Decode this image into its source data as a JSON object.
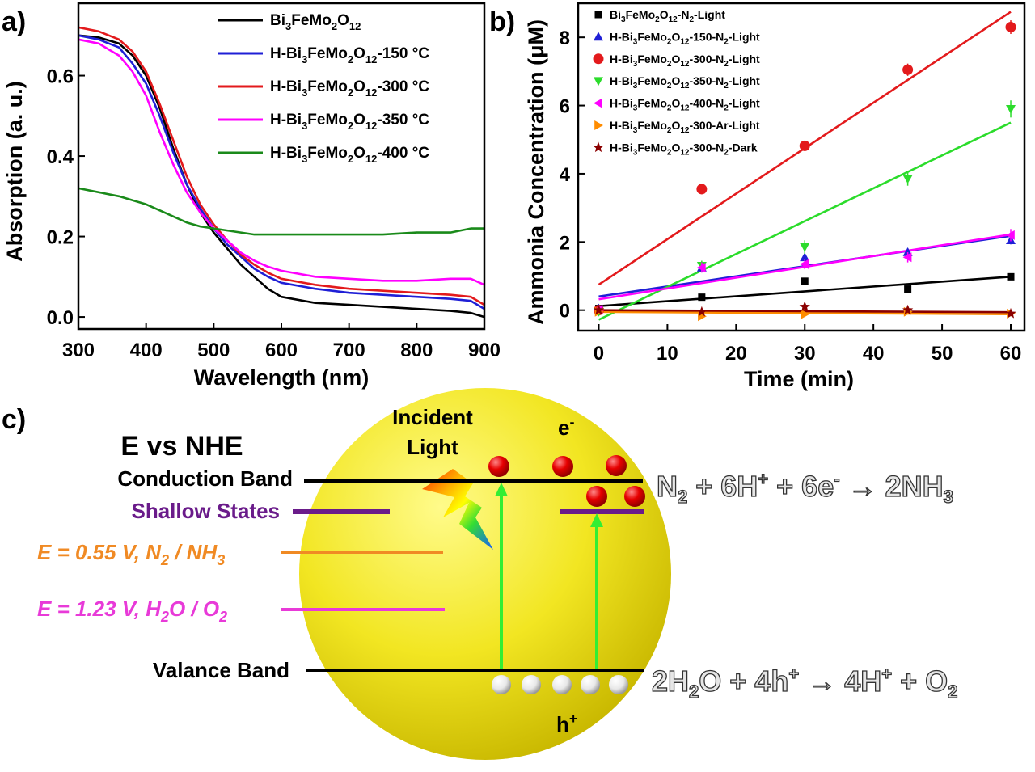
{
  "panels": {
    "a": "a)",
    "b": "b)",
    "c": "c)"
  },
  "chart_data": [
    {
      "type": "line",
      "title": "",
      "xlabel": "Wavelength (nm)",
      "ylabel": "Absorption (a. u.)",
      "xlim": [
        300,
        900
      ],
      "ylim": [
        -0.03,
        0.78
      ],
      "xticks": [
        300,
        400,
        500,
        600,
        700,
        800,
        900
      ],
      "yticks": [
        0.0,
        0.2,
        0.4,
        0.6
      ],
      "legend_position": "top-right",
      "series": [
        {
          "name": "Bi3FeMo2O12",
          "label_parts": [
            "Bi",
            "3",
            "FeMo",
            "2",
            "O",
            "12",
            ""
          ],
          "color": "#000000",
          "x": [
            300,
            330,
            360,
            380,
            400,
            420,
            440,
            460,
            480,
            500,
            520,
            540,
            560,
            580,
            600,
            650,
            700,
            750,
            800,
            850,
            880,
            900
          ],
          "y": [
            0.7,
            0.695,
            0.68,
            0.65,
            0.6,
            0.52,
            0.42,
            0.33,
            0.26,
            0.21,
            0.17,
            0.13,
            0.1,
            0.07,
            0.05,
            0.035,
            0.03,
            0.025,
            0.02,
            0.015,
            0.01,
            0.0
          ]
        },
        {
          "name": "H-Bi3FeMo2O12-150 °C",
          "label_parts": [
            "H-Bi",
            "3",
            "FeMo",
            "2",
            "O",
            "12",
            "-150 °C"
          ],
          "color": "#1f1fd6",
          "x": [
            300,
            330,
            360,
            380,
            400,
            420,
            440,
            460,
            480,
            500,
            520,
            540,
            560,
            580,
            600,
            650,
            700,
            750,
            800,
            850,
            880,
            900
          ],
          "y": [
            0.7,
            0.69,
            0.67,
            0.63,
            0.58,
            0.5,
            0.41,
            0.33,
            0.27,
            0.22,
            0.18,
            0.15,
            0.12,
            0.1,
            0.085,
            0.07,
            0.06,
            0.055,
            0.05,
            0.045,
            0.04,
            0.02
          ]
        },
        {
          "name": "H-Bi3FeMo2O12-300 °C",
          "label_parts": [
            "H-Bi",
            "3",
            "FeMo",
            "2",
            "O",
            "12",
            "-300 °C"
          ],
          "color": "#e31a1c",
          "x": [
            300,
            330,
            360,
            380,
            400,
            420,
            440,
            460,
            480,
            500,
            520,
            540,
            560,
            580,
            600,
            650,
            700,
            750,
            800,
            850,
            880,
            900
          ],
          "y": [
            0.72,
            0.71,
            0.69,
            0.66,
            0.61,
            0.53,
            0.44,
            0.35,
            0.28,
            0.23,
            0.19,
            0.155,
            0.13,
            0.11,
            0.095,
            0.08,
            0.07,
            0.065,
            0.06,
            0.055,
            0.05,
            0.03
          ]
        },
        {
          "name": "H-Bi3FeMo2O12-350 °C",
          "label_parts": [
            "H-Bi",
            "3",
            "FeMo",
            "2",
            "O",
            "12",
            "-350 °C"
          ],
          "color": "#ff00ff",
          "x": [
            300,
            330,
            360,
            380,
            400,
            420,
            440,
            460,
            480,
            500,
            520,
            540,
            560,
            580,
            600,
            650,
            700,
            750,
            800,
            850,
            880,
            900
          ],
          "y": [
            0.69,
            0.68,
            0.65,
            0.61,
            0.55,
            0.46,
            0.38,
            0.31,
            0.26,
            0.22,
            0.19,
            0.16,
            0.14,
            0.125,
            0.115,
            0.1,
            0.095,
            0.09,
            0.09,
            0.095,
            0.095,
            0.08
          ]
        },
        {
          "name": "H-Bi3FeMo2O12-400 °C",
          "label_parts": [
            "H-Bi",
            "3",
            "FeMo",
            "2",
            "O",
            "12",
            "-400 °C"
          ],
          "color": "#1a8a1a",
          "x": [
            300,
            330,
            360,
            380,
            400,
            420,
            440,
            460,
            480,
            500,
            520,
            540,
            560,
            580,
            600,
            650,
            700,
            750,
            800,
            850,
            880,
            900
          ],
          "y": [
            0.32,
            0.31,
            0.3,
            0.29,
            0.28,
            0.265,
            0.25,
            0.235,
            0.225,
            0.22,
            0.215,
            0.21,
            0.205,
            0.205,
            0.205,
            0.205,
            0.205,
            0.205,
            0.21,
            0.21,
            0.22,
            0.22
          ]
        }
      ]
    },
    {
      "type": "scatter",
      "title": "",
      "xlabel": "Time (min)",
      "ylabel": "Ammonia Concentration (μM)",
      "xlim": [
        -3,
        62
      ],
      "ylim": [
        -0.6,
        9.0
      ],
      "xticks": [
        0,
        10,
        20,
        30,
        40,
        50,
        60
      ],
      "yticks": [
        0,
        2,
        4,
        6,
        8
      ],
      "legend_position": "top-left",
      "series": [
        {
          "name": "Bi3FeMo2O12-N2-Light",
          "label_parts": [
            "Bi",
            "3",
            "FeMo",
            "2",
            "O",
            "12",
            "-N",
            "2",
            "-Light"
          ],
          "marker": "square",
          "color": "#000000",
          "x": [
            0,
            15,
            30,
            45,
            60
          ],
          "y": [
            0.05,
            0.38,
            0.85,
            0.62,
            0.98
          ],
          "err": [
            0.03,
            0.04,
            0.05,
            0.05,
            0.05
          ],
          "fit": [
            0.12,
            0.98
          ]
        },
        {
          "name": "H-Bi3FeMo2O12-150-N2-Light",
          "label_parts": [
            "H-Bi",
            "3",
            "FeMo",
            "2",
            "O",
            "12",
            "-150-N",
            "2",
            "-Light"
          ],
          "marker": "triangle-up",
          "color": "#1f1fd6",
          "x": [
            0,
            15,
            30,
            45,
            60
          ],
          "y": [
            0.05,
            1.25,
            1.55,
            1.7,
            2.05
          ],
          "err": [
            0.05,
            0.1,
            0.12,
            0.12,
            0.12
          ],
          "fit": [
            0.4,
            2.18
          ]
        },
        {
          "name": "H-Bi3FeMo2O12-300-N2-Light",
          "label_parts": [
            "H-Bi",
            "3",
            "FeMo",
            "2",
            "O",
            "12",
            "-300-N",
            "2",
            "-Light"
          ],
          "marker": "circle",
          "color": "#e31a1c",
          "x": [
            0,
            15,
            30,
            45,
            60
          ],
          "y": [
            0.0,
            3.55,
            4.82,
            7.05,
            8.3
          ],
          "err": [
            0.05,
            0.15,
            0.15,
            0.18,
            0.2
          ],
          "fit": [
            0.75,
            8.75
          ]
        },
        {
          "name": "H-Bi3FeMo2O12-350-N2-Light",
          "label_parts": [
            "H-Bi",
            "3",
            "FeMo",
            "2",
            "O",
            "12",
            "-350-N",
            "2",
            "-Light"
          ],
          "marker": "triangle-down",
          "color": "#2bdc2b",
          "x": [
            0,
            15,
            30,
            45,
            60
          ],
          "y": [
            -0.05,
            1.3,
            1.85,
            3.85,
            5.9
          ],
          "err": [
            0.05,
            0.15,
            0.2,
            0.2,
            0.25
          ],
          "fit": [
            -0.28,
            5.5
          ]
        },
        {
          "name": "H-Bi3FeMo2O12-400-N2-Light",
          "label_parts": [
            "H-Bi",
            "3",
            "FeMo",
            "2",
            "O",
            "12",
            "-400-N",
            "2",
            "-Light"
          ],
          "marker": "triangle-left",
          "color": "#ff00ff",
          "x": [
            0,
            15,
            30,
            45,
            60
          ],
          "y": [
            0.02,
            1.25,
            1.35,
            1.55,
            2.2
          ],
          "err": [
            0.05,
            0.15,
            0.15,
            0.15,
            0.18
          ],
          "fit": [
            0.32,
            2.22
          ]
        },
        {
          "name": "H-Bi3FeMo2O12-300-Ar-Light",
          "label_parts": [
            "H-Bi",
            "3",
            "FeMo",
            "2",
            "O",
            "12",
            "-300-Ar-Light",
            "",
            ""
          ],
          "marker": "triangle-right",
          "color": "#ff8c00",
          "x": [
            0,
            15,
            30,
            45,
            60
          ],
          "y": [
            -0.05,
            -0.18,
            -0.12,
            -0.05,
            -0.1
          ],
          "err": [
            0.03,
            0.04,
            0.04,
            0.04,
            0.04
          ],
          "fit": [
            -0.05,
            -0.12
          ]
        },
        {
          "name": "H-Bi3FeMo2O12-300-N2-Dark",
          "label_parts": [
            "H-Bi",
            "3",
            "FeMo",
            "2",
            "O",
            "12",
            "-300-N",
            "2",
            "-Dark"
          ],
          "marker": "star",
          "color": "#8b0000",
          "x": [
            0,
            15,
            30,
            45,
            60
          ],
          "y": [
            0.0,
            -0.05,
            0.1,
            0.0,
            -0.1
          ],
          "err": [
            0.03,
            0.04,
            0.04,
            0.04,
            0.04
          ],
          "fit": [
            0.0,
            -0.06
          ]
        }
      ]
    }
  ],
  "schematic": {
    "title": "E vs NHE",
    "incident_light": [
      "Incident",
      "Light"
    ],
    "electron_label": "e",
    "electron_sup": "-",
    "hole_label": "h",
    "hole_sup": "+",
    "levels": {
      "conduction_band": "Conduction Band",
      "shallow_states": "Shallow States",
      "n2_prefix": "E = 0.55 V, N",
      "n2_sub1": "2",
      "n2_mid": " / NH",
      "n2_sub2": "3",
      "h2o_prefix": "E = 1.23 V, H",
      "h2o_sub1": "2",
      "h2o_mid": "O / O",
      "h2o_sub2": "2",
      "valance_band": "Valance Band"
    },
    "colors": {
      "shallow": "#6a1b8a",
      "n2_level": "#f08a24",
      "h2o_level": "#e83ad8",
      "sphere": "#f2e622",
      "electron": "#e60000",
      "arrow": "#33ee33"
    },
    "reaction_reduction": {
      "a": "N",
      "a_sub": "2",
      "b": " + 6H",
      "b_sup": "+",
      "c": " + 6e",
      "c_sup": "-",
      "d": " → 2NH",
      "d_sub": "3"
    },
    "reaction_oxidation": {
      "a": "2H",
      "a_sub": "2",
      "b": "O + 4h",
      "b_sup": "+",
      "c": " → 4H",
      "c_sup": "+",
      "d": " + O",
      "d_sub": "2"
    }
  }
}
